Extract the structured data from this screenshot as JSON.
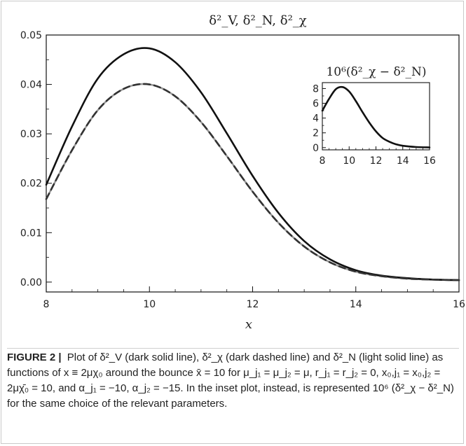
{
  "figure": {
    "main_title": "δ²_V, δ²_N, δ²_χ",
    "inset_title": "10⁶(δ²_χ − δ²_N)",
    "xlabel": "x"
  },
  "caption": {
    "label": "FIGURE 2",
    "separator": "|",
    "text": "Plot of δ²_V (dark solid line), δ²_χ (dark dashed line) and δ²_N (light solid line) as functions of x ≡ 2μχ₀ around the bounce x̄ = 10 for μ_j₁ = μ_j₂ = μ, r_j₁ = r_j₂ = 0, x₀,j₁ = x₀,j₂ = 2μχ̄₀ = 10, and α_j₁ = −10, α_j₂ = −15. In the inset plot, instead, is represented 10⁶ (δ²_χ − δ²_N) for the same choice of the relevant parameters."
  },
  "chart_data": [
    {
      "type": "line",
      "title": "δ²_V, δ²_N, δ²_χ",
      "xlabel": "x",
      "ylabel": "",
      "xlim": [
        8,
        16
      ],
      "ylim": [
        -0.002,
        0.05
      ],
      "xticks": [
        "8",
        "10",
        "12",
        "14",
        "16"
      ],
      "yticks": [
        "0.00",
        "0.01",
        "0.02",
        "0.03",
        "0.04",
        "0.05"
      ],
      "x": [
        8.0,
        8.5,
        9.0,
        9.5,
        10.0,
        10.5,
        11.0,
        11.5,
        12.0,
        12.5,
        13.0,
        13.5,
        14.0,
        14.5,
        15.0,
        15.5,
        16.0
      ],
      "series": [
        {
          "name": "δ²_V",
          "style": "solid",
          "color": "#111111",
          "values": [
            0.0197,
            0.0315,
            0.0412,
            0.0461,
            0.0473,
            0.0445,
            0.0384,
            0.0301,
            0.0215,
            0.014,
            0.0083,
            0.0046,
            0.0024,
            0.0013,
            0.0008,
            0.0005,
            0.0004
          ]
        },
        {
          "name": "δ²_χ",
          "style": "dashed",
          "color": "#333333",
          "values": [
            0.0168,
            0.0267,
            0.0348,
            0.0391,
            0.04,
            0.0376,
            0.0324,
            0.0255,
            0.0183,
            0.012,
            0.0072,
            0.004,
            0.0021,
            0.0012,
            0.0007,
            0.0005,
            0.0004
          ]
        },
        {
          "name": "δ²_N",
          "style": "solid",
          "color": "#9a9a9a",
          "values": [
            0.0168,
            0.0267,
            0.0348,
            0.0391,
            0.04,
            0.0376,
            0.0324,
            0.0255,
            0.0183,
            0.012,
            0.0072,
            0.004,
            0.0021,
            0.0012,
            0.0007,
            0.0005,
            0.0004
          ]
        }
      ]
    },
    {
      "type": "line",
      "title": "10⁶(δ²_χ − δ²_N)",
      "xlim": [
        8,
        16
      ],
      "ylim": [
        -0.3,
        8.8
      ],
      "xticks": [
        "8",
        "10",
        "12",
        "14",
        "16"
      ],
      "yticks": [
        "0",
        "2",
        "4",
        "6",
        "8"
      ],
      "x": [
        8.0,
        8.5,
        9.0,
        9.5,
        10.0,
        10.5,
        11.0,
        11.5,
        12.0,
        12.5,
        13.0,
        13.5,
        14.0,
        15.0,
        16.0
      ],
      "series": [
        {
          "style": "solid",
          "color": "#111111",
          "values": [
            5.0,
            6.6,
            7.9,
            8.2,
            7.6,
            6.3,
            4.8,
            3.4,
            2.2,
            1.3,
            0.8,
            0.45,
            0.25,
            0.08,
            0.03
          ]
        }
      ]
    }
  ]
}
